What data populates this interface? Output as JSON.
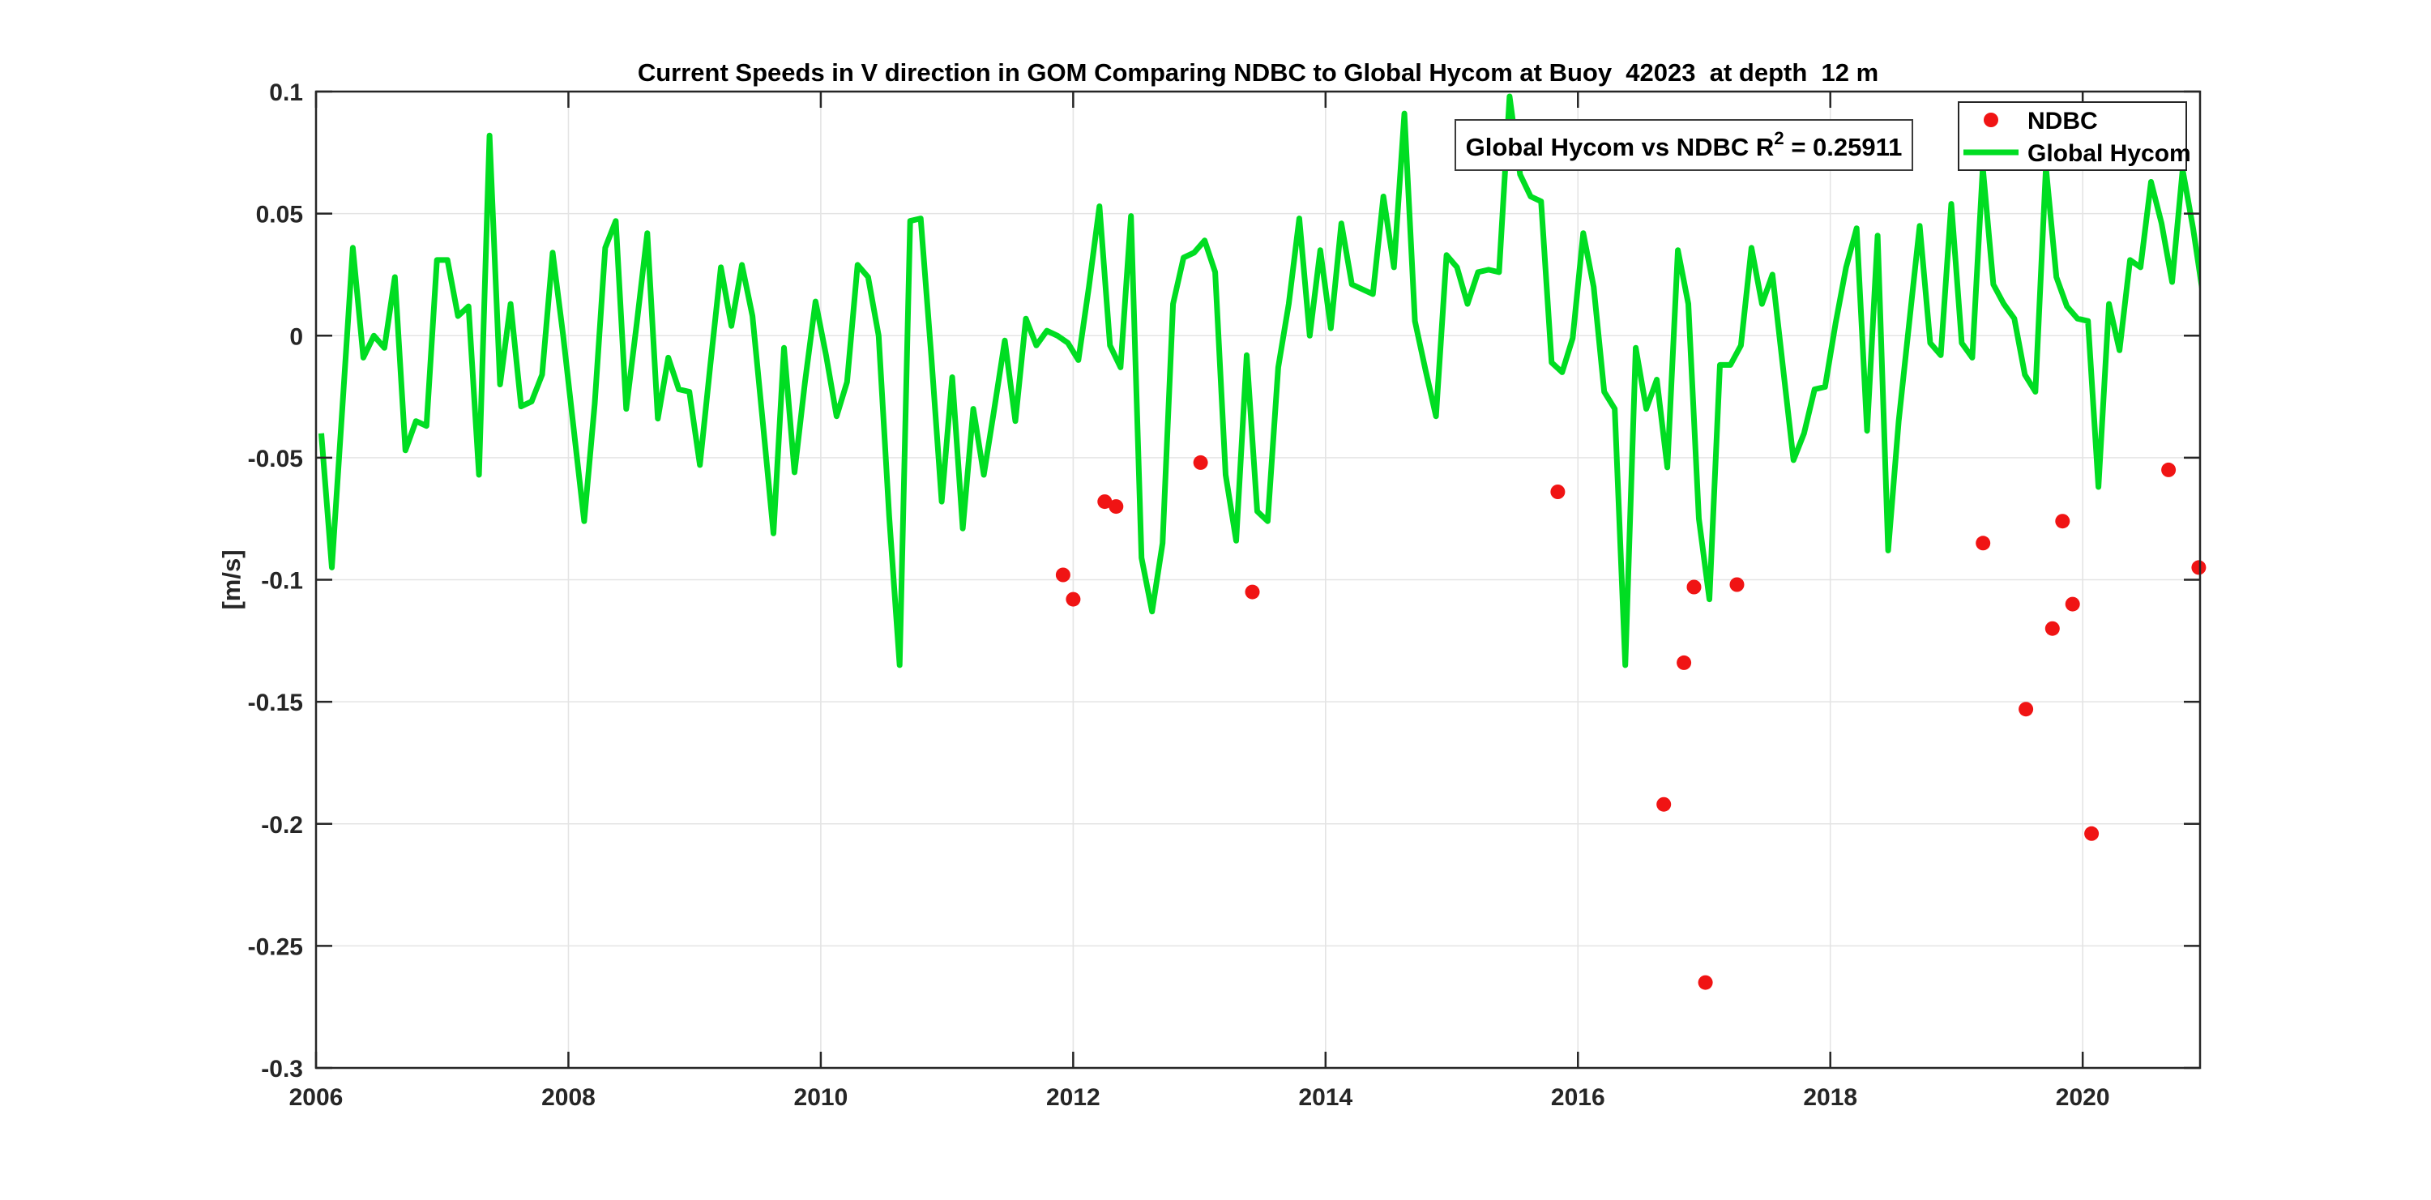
{
  "figure": {
    "window_title": "",
    "background": "#ffffff"
  },
  "chart_data": {
    "type": "line+scatter",
    "title": "Current Speeds in V direction in GOM Comparing NDBC to Global Hycom at Buoy  42023  at depth  12 m",
    "xlabel": "",
    "ylabel": "[m/s]",
    "xlim": [
      2006,
      2020.93
    ],
    "ylim": [
      -0.3,
      0.1
    ],
    "xticks": [
      2006,
      2008,
      2010,
      2012,
      2014,
      2016,
      2018,
      2020
    ],
    "yticks": {
      "values": [
        0.1,
        0.05,
        0,
        -0.05,
        -0.1,
        -0.15,
        -0.2,
        -0.25,
        -0.3
      ],
      "labels": [
        "0.1",
        "0.05",
        "0",
        "-0.05",
        "-0.1",
        "-0.15",
        "-0.2",
        "-0.25",
        "-0.3"
      ]
    },
    "grid": true,
    "legend": {
      "position": "top-right",
      "entries": [
        {
          "label": "NDBC",
          "marker": "dot",
          "color": "#f01414"
        },
        {
          "label": "Global Hycom",
          "marker": "line",
          "color": "#00dd22"
        }
      ]
    },
    "annotation": {
      "prefix": "Global Hycom vs NDBC R",
      "sup": "2",
      "suffix": " = 0.25911"
    },
    "colors": {
      "hycom_line": "#00dd22",
      "ndbc_marker": "#f01414",
      "axis": "#262626",
      "grid": "#e4e4e4",
      "title_text": "#000000",
      "tick_text": "#262626"
    },
    "series": [
      {
        "name": "Global Hycom",
        "type": "line",
        "color": "#00dd22",
        "x_start_year": 2006,
        "x_step_months": 1,
        "values": [
          -0.04,
          -0.095,
          -0.03,
          0.036,
          -0.009,
          0.0,
          -0.005,
          0.024,
          -0.047,
          -0.035,
          -0.037,
          0.031,
          0.031,
          0.008,
          0.012,
          -0.057,
          0.082,
          -0.02,
          0.013,
          -0.029,
          -0.027,
          -0.016,
          0.034,
          0.0,
          -0.038,
          -0.076,
          -0.028,
          0.036,
          0.047,
          -0.03,
          0.005,
          0.042,
          -0.034,
          -0.009,
          -0.022,
          -0.023,
          -0.053,
          -0.012,
          0.028,
          0.004,
          0.029,
          0.008,
          -0.036,
          -0.081,
          -0.005,
          -0.056,
          -0.019,
          0.014,
          -0.008,
          -0.033,
          -0.019,
          0.029,
          0.024,
          0.0,
          -0.074,
          -0.135,
          0.047,
          0.048,
          -0.008,
          -0.068,
          -0.017,
          -0.079,
          -0.03,
          -0.057,
          -0.03,
          -0.002,
          -0.035,
          0.007,
          -0.004,
          0.002,
          0.0,
          -0.003,
          -0.01,
          0.02,
          0.053,
          -0.004,
          -0.013,
          0.049,
          -0.091,
          -0.113,
          -0.085,
          0.013,
          0.032,
          0.034,
          0.039,
          0.026,
          -0.057,
          -0.084,
          -0.008,
          -0.072,
          -0.076,
          -0.013,
          0.013,
          0.048,
          0.0,
          0.035,
          0.003,
          0.046,
          0.021,
          0.019,
          0.017,
          0.057,
          0.028,
          0.091,
          0.006,
          -0.014,
          -0.033,
          0.033,
          0.028,
          0.013,
          0.026,
          0.027,
          0.026,
          0.098,
          0.066,
          0.057,
          0.055,
          -0.011,
          -0.015,
          -0.001,
          0.042,
          0.02,
          -0.023,
          -0.03,
          -0.135,
          -0.005,
          -0.03,
          -0.018,
          -0.054,
          0.035,
          0.013,
          -0.075,
          -0.108,
          -0.012,
          -0.012,
          -0.004,
          0.036,
          0.013,
          0.025,
          -0.013,
          -0.051,
          -0.04,
          -0.022,
          -0.021,
          0.005,
          0.028,
          0.044,
          -0.039,
          0.041,
          -0.088,
          -0.035,
          0.005,
          0.045,
          -0.003,
          -0.008,
          0.054,
          -0.003,
          -0.009,
          0.069,
          0.021,
          0.013,
          0.007,
          -0.016,
          -0.023,
          0.069,
          0.024,
          0.012,
          0.007,
          0.006,
          -0.062,
          0.013,
          -0.006,
          0.031,
          0.028,
          0.063,
          0.046,
          0.022,
          0.068,
          0.044,
          0.015
        ]
      },
      {
        "name": "NDBC",
        "type": "scatter",
        "color": "#f01414",
        "points": [
          [
            2011.92,
            -0.098
          ],
          [
            2012.0,
            -0.108
          ],
          [
            2012.25,
            -0.068
          ],
          [
            2012.34,
            -0.07
          ],
          [
            2013.01,
            -0.052
          ],
          [
            2013.42,
            -0.105
          ],
          [
            2015.84,
            -0.064
          ],
          [
            2016.68,
            -0.192
          ],
          [
            2016.84,
            -0.134
          ],
          [
            2016.92,
            -0.103
          ],
          [
            2017.01,
            -0.265
          ],
          [
            2017.26,
            -0.102
          ],
          [
            2019.21,
            -0.085
          ],
          [
            2019.55,
            -0.153
          ],
          [
            2019.76,
            -0.12
          ],
          [
            2019.84,
            -0.076
          ],
          [
            2019.92,
            -0.11
          ],
          [
            2020.07,
            -0.204
          ],
          [
            2020.68,
            -0.055
          ],
          [
            2020.92,
            -0.095
          ]
        ]
      }
    ]
  }
}
